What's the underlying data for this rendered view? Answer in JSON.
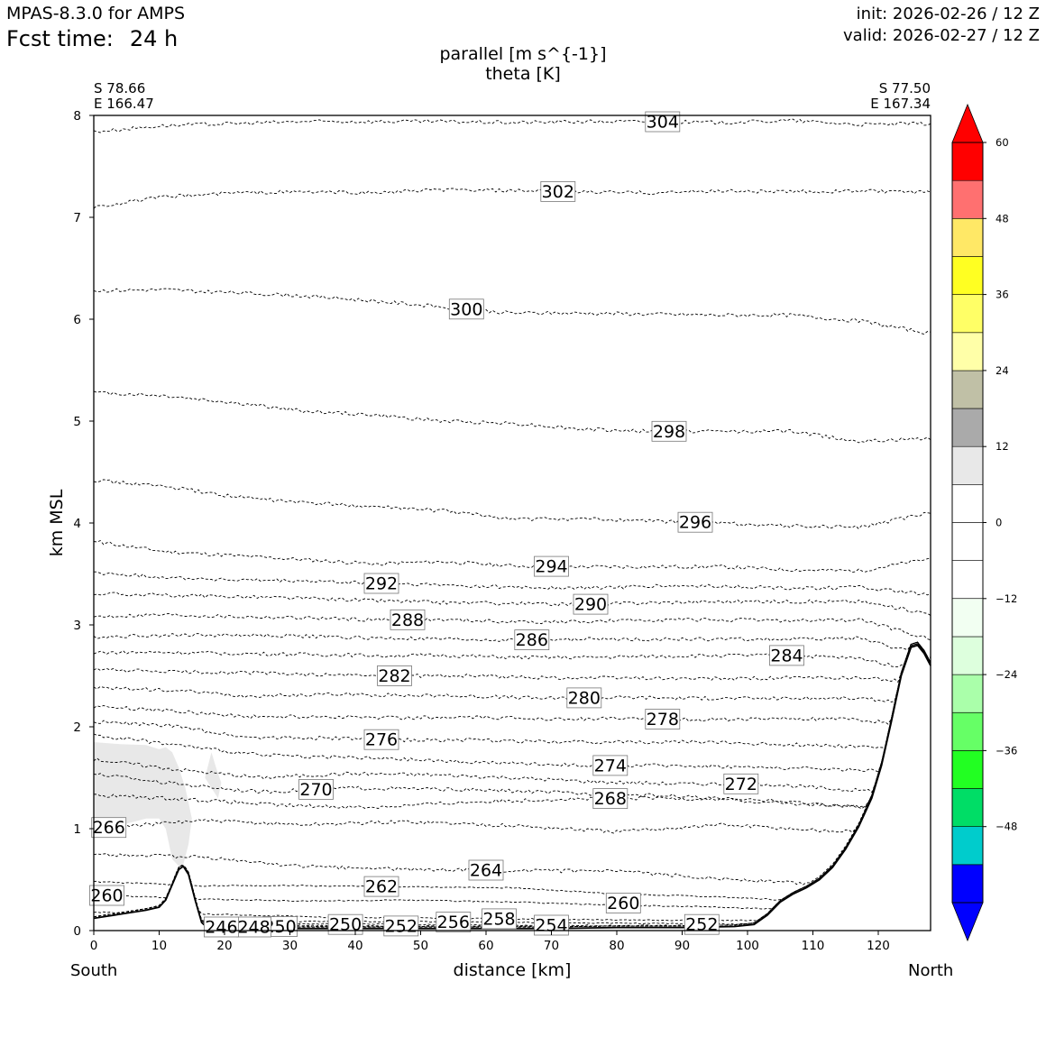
{
  "header": {
    "model": "MPAS-8.3.0 for AMPS",
    "fcst_label": "Fcst time:",
    "fcst_value": "24 h",
    "init": "init: 2026-02-26 / 12 Z",
    "valid": "valid: 2026-02-27 / 12 Z",
    "title_line1": "parallel [m s^{-1}]",
    "title_line2": "theta [K]"
  },
  "endpoints": {
    "left_lat": "S 78.66",
    "left_lon": "E 166.47",
    "right_lat": "S 77.50",
    "right_lon": "E 167.34",
    "left_dir": "South",
    "right_dir": "North"
  },
  "colorbar": {
    "ticks": [
      "60",
      "48",
      "36",
      "24",
      "12",
      "0",
      "−12",
      "−24",
      "−36",
      "−48"
    ],
    "levels": [
      -60,
      -54,
      -48,
      -42,
      -36,
      -30,
      -24,
      -18,
      -12,
      -6,
      0,
      6,
      12,
      18,
      24,
      30,
      36,
      42,
      48,
      54,
      60
    ],
    "colors": [
      "#0000ff",
      "#00cccc",
      "#00dd66",
      "#22ff22",
      "#66ff66",
      "#aaffaa",
      "#ddffdd",
      "#f2fff2",
      "#ffffff",
      "#ffffff",
      "#ffffff",
      "#e8e8e8",
      "#aaaaaa",
      "#c0c0a6",
      "#ffffa8",
      "#ffff66",
      "#ffff22",
      "#ffe866",
      "#ff7070",
      "#ff0000"
    ],
    "tick_values": [
      60,
      48,
      36,
      24,
      12,
      0,
      -12,
      -24,
      -36,
      -48
    ]
  },
  "chart_data": {
    "type": "contour",
    "title": "parallel [m s^{-1}] / theta [K]",
    "xlabel": "distance [km]",
    "ylabel": "km MSL",
    "xlim": [
      0,
      128
    ],
    "ylim": [
      0,
      8
    ],
    "xticks": [
      0,
      10,
      20,
      30,
      40,
      50,
      60,
      70,
      80,
      90,
      100,
      110,
      120
    ],
    "yticks": [
      0,
      1,
      2,
      3,
      4,
      5,
      6,
      7,
      8
    ],
    "terrain": {
      "x": [
        0,
        4,
        8,
        10,
        11,
        12,
        13,
        13.7,
        14.5,
        15.5,
        16.5,
        17.5,
        20,
        30,
        40,
        50,
        60,
        70,
        80,
        90,
        98,
        101,
        103,
        105,
        107,
        109,
        111,
        113,
        115,
        117,
        119,
        120.5,
        122,
        123.5,
        125,
        126,
        127,
        128
      ],
      "y": [
        0.12,
        0.16,
        0.2,
        0.23,
        0.3,
        0.45,
        0.6,
        0.63,
        0.55,
        0.3,
        0.08,
        0.02,
        0.02,
        0.02,
        0.02,
        0.02,
        0.02,
        0.02,
        0.03,
        0.03,
        0.04,
        0.06,
        0.15,
        0.28,
        0.36,
        0.42,
        0.5,
        0.62,
        0.8,
        1.02,
        1.3,
        1.62,
        2.05,
        2.5,
        2.78,
        2.8,
        2.72,
        2.6
      ]
    },
    "shading": [
      {
        "value_range": "6 to 12 m s^-1",
        "x": [
          0,
          4,
          8,
          10,
          11,
          12,
          13,
          14,
          15,
          14.5,
          13.5,
          12,
          11,
          10,
          8,
          5,
          2,
          0
        ],
        "y": [
          1.85,
          1.83,
          1.82,
          1.78,
          1.8,
          1.75,
          1.6,
          1.4,
          1.1,
          0.85,
          0.6,
          0.7,
          1.0,
          1.1,
          1.1,
          1.05,
          1.02,
          1.0
        ]
      },
      {
        "value_range": "6 to 12 m s^-1",
        "x": [
          17,
          18,
          18.7,
          19.5,
          19,
          18,
          17
        ],
        "y": [
          1.5,
          1.75,
          1.6,
          1.45,
          1.3,
          1.4,
          1.5
        ]
      }
    ],
    "theta_contours": [
      {
        "level": 304,
        "y": 7.84,
        "dy": [
          0,
          0.06,
          0.08,
          0.1,
          0.1,
          0.1,
          0.09,
          0.1,
          0.1,
          0.09,
          0.11,
          0.07,
          0.08
        ],
        "label_x": 87
      },
      {
        "level": 302,
        "y": 7.1,
        "dy": [
          0,
          0.1,
          0.14,
          0.15,
          0.14,
          0.17,
          0.16,
          0.15,
          0.14,
          0.16,
          0.15,
          0.16,
          0.14
        ],
        "label_x": 71
      },
      {
        "level": 300,
        "y": 6.28,
        "dy": [
          0,
          0.01,
          -0.02,
          -0.05,
          -0.1,
          -0.16,
          -0.22,
          -0.22,
          -0.23,
          -0.24,
          -0.24,
          -0.3,
          -0.42
        ],
        "label_x": 57
      },
      {
        "level": 298,
        "y": 5.28,
        "dy": [
          0,
          -0.03,
          -0.1,
          -0.18,
          -0.22,
          -0.28,
          -0.3,
          -0.36,
          -0.38,
          -0.38,
          -0.38,
          -0.48,
          -0.45
        ],
        "label_x": 88
      },
      {
        "level": 296,
        "y": 4.42,
        "dy": [
          0,
          -0.06,
          -0.16,
          -0.22,
          -0.26,
          -0.3,
          -0.38,
          -0.38,
          -0.4,
          -0.42,
          -0.45,
          -0.46,
          -0.32
        ],
        "label_x": 92
      },
      {
        "level": 294,
        "y": 3.82,
        "dy": [
          0,
          -0.1,
          -0.14,
          -0.18,
          -0.22,
          -0.2,
          -0.24,
          -0.25,
          -0.25,
          -0.25,
          -0.28,
          -0.29,
          -0.17
        ],
        "label_x": 70
      },
      {
        "level": 292,
        "y": 3.51,
        "dy": [
          0,
          -0.04,
          -0.07,
          -0.08,
          -0.1,
          -0.12,
          -0.14,
          -0.15,
          -0.13,
          -0.13,
          -0.15,
          -0.14,
          -0.22
        ],
        "label_x": 44
      },
      {
        "level": 290,
        "y": 3.31,
        "dy": [
          0,
          -0.02,
          -0.03,
          -0.05,
          -0.07,
          -0.09,
          -0.1,
          -0.11,
          -0.09,
          -0.08,
          -0.08,
          -0.08,
          -0.2
        ],
        "label_x": 76
      },
      {
        "level": 288,
        "y": 3.08,
        "dy": [
          0,
          0.02,
          0,
          -0.01,
          -0.03,
          -0.03,
          -0.05,
          -0.05,
          -0.03,
          -0.03,
          -0.04,
          -0.03,
          -0.22
        ],
        "label_x": 48
      },
      {
        "level": 286,
        "y": 2.88,
        "dy": [
          0,
          0.02,
          0.02,
          0.01,
          -0.01,
          -0.02,
          -0.03,
          -0.02,
          -0.02,
          -0.02,
          -0.02,
          -0.01,
          -0.2
        ],
        "label_x": 67
      },
      {
        "level": 284,
        "y": 2.73,
        "dy": [
          0,
          0,
          -0.01,
          -0.02,
          -0.03,
          -0.03,
          -0.05,
          -0.05,
          -0.04,
          -0.03,
          -0.03,
          -0.06,
          -0.2
        ],
        "label_x": 106
      },
      {
        "level": 282,
        "y": 2.56,
        "dy": [
          0,
          -0.02,
          -0.03,
          -0.05,
          -0.06,
          -0.06,
          -0.08,
          -0.08,
          -0.09,
          -0.08,
          -0.08,
          -0.12
        ],
        "label_x": 46
      },
      {
        "level": 280,
        "y": 2.38,
        "dy": [
          0,
          -0.02,
          -0.08,
          -0.06,
          -0.07,
          -0.08,
          -0.1,
          -0.09,
          -0.1,
          -0.1,
          -0.1,
          -0.15
        ],
        "label_x": 75
      },
      {
        "level": 278,
        "y": 2.2,
        "dy": [
          0,
          -0.04,
          -0.1,
          -0.1,
          -0.11,
          -0.11,
          -0.12,
          -0.12,
          -0.13,
          -0.12,
          -0.13,
          -0.2
        ],
        "label_x": 87
      },
      {
        "level": 276,
        "y": 2.05,
        "dy": [
          0,
          -0.04,
          -0.15,
          -0.16,
          -0.18,
          -0.18,
          -0.2,
          -0.2,
          -0.2,
          -0.22,
          -0.24,
          -0.28
        ],
        "label_x": 44
      },
      {
        "level": 274,
        "y": 1.92,
        "dy": [
          0,
          -0.1,
          -0.2,
          -0.22,
          -0.25,
          -0.28,
          -0.3,
          -0.3,
          -0.32,
          -0.34,
          -0.36
        ],
        "label_x": 79
      },
      {
        "level": 272,
        "y": 1.68,
        "dy": [
          0,
          -0.1,
          -0.18,
          -0.14,
          -0.15,
          -0.18,
          -0.22,
          -0.24,
          -0.24,
          -0.3,
          -0.32
        ],
        "label_x": 99
      },
      {
        "level": 270,
        "y": 1.54,
        "dy": [
          0,
          -0.1,
          -0.18,
          -0.14,
          -0.15,
          -0.17,
          -0.2,
          -0.22,
          -0.28,
          -0.32,
          -0.37
        ],
        "label_x": 34
      },
      {
        "level": 268,
        "y": 1.33,
        "dy": [
          0,
          -0.04,
          -0.1,
          -0.12,
          -0.07,
          -0.04,
          -0.03,
          -0.04,
          -0.1,
          -0.15
        ],
        "label_x": 79
      },
      {
        "level": 266,
        "y": 1.0,
        "dy": [
          0,
          0.08,
          0.04,
          0.07,
          0.03,
          -0.03,
          0.04,
          -0.02,
          -0.05
        ],
        "label_x": 2.3
      },
      {
        "level": 264,
        "y": 0.75,
        "dy": [
          0,
          -0.03,
          -0.12,
          -0.15,
          -0.16,
          -0.17,
          -0.24,
          -0.3,
          -0.38
        ],
        "label_x": 60
      },
      {
        "level": 262,
        "y": 0.48,
        "dy": [
          0,
          -0.04,
          -0.04,
          -0.05,
          -0.06,
          -0.12,
          -0.15,
          -0.2,
          -0.25
        ],
        "label_x": 44
      },
      {
        "level": 260,
        "y": 0.35,
        "dy": [
          0,
          -0.04,
          -0.06,
          -0.05,
          -0.07,
          -0.1,
          -0.12,
          -0.16,
          -0.2
        ],
        "label_x": 2.0
      },
      {
        "level": 258,
        "y": 0.18,
        "dy": [
          0,
          -0.02,
          -0.05,
          -0.06,
          -0.07,
          -0.08,
          -0.08,
          -0.09
        ],
        "label_x": 62
      },
      {
        "level": 256,
        "y": 0.11,
        "dy": [
          0,
          -0.02,
          -0.02,
          -0.03,
          -0.04,
          -0.05,
          -0.04
        ],
        "label_x": 55
      },
      {
        "level": 254,
        "y": 0.07,
        "dy": [
          0,
          0,
          -0.01,
          -0.02,
          -0.02,
          -0.02
        ],
        "label_x": 70
      },
      {
        "level": 252,
        "y": 0.05,
        "dy": [
          0,
          0,
          -0.01,
          -0.01,
          -0.02
        ],
        "label_x": 47
      },
      {
        "level": 250,
        "y": 0.04,
        "dy": [
          0,
          0,
          0,
          0
        ],
        "label_x": 28.5
      },
      {
        "level": 248,
        "y": 0.03,
        "dy": [
          0,
          0,
          0
        ],
        "label_x": 24.5
      },
      {
        "level": 246,
        "y": 0.02,
        "dy": [
          0,
          0
        ],
        "label_x": 19.5
      }
    ],
    "extra_labels": [
      {
        "level": 260,
        "x": 81,
        "y": 0.27
      },
      {
        "level": 252,
        "x": 93,
        "y": 0.06
      },
      {
        "level": 250,
        "x": 38.5,
        "y": 0.06
      }
    ]
  }
}
